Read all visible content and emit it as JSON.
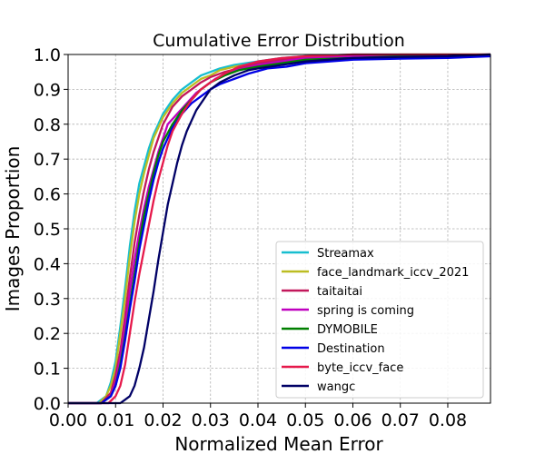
{
  "chart_data": {
    "type": "line",
    "title": "Cumulative Error Distribution",
    "xlabel": "Normalized Mean Error",
    "ylabel": "Images Proportion",
    "xlim": [
      0.0,
      0.089
    ],
    "ylim": [
      0.0,
      1.0
    ],
    "xticks": [
      "0.00",
      "0.01",
      "0.02",
      "0.03",
      "0.04",
      "0.05",
      "0.06",
      "0.07",
      "0.08"
    ],
    "yticks": [
      "0.0",
      "0.1",
      "0.2",
      "0.3",
      "0.4",
      "0.5",
      "0.6",
      "0.7",
      "0.8",
      "0.9",
      "1.0"
    ],
    "grid": true,
    "legend_position": "lower-right",
    "series": [
      {
        "name": "Streamax",
        "color": "#17becf",
        "points": [
          [
            0.0,
            0.0
          ],
          [
            0.006,
            0.0
          ],
          [
            0.008,
            0.02
          ],
          [
            0.009,
            0.06
          ],
          [
            0.01,
            0.12
          ],
          [
            0.011,
            0.22
          ],
          [
            0.012,
            0.33
          ],
          [
            0.013,
            0.45
          ],
          [
            0.014,
            0.55
          ],
          [
            0.015,
            0.63
          ],
          [
            0.016,
            0.68
          ],
          [
            0.017,
            0.73
          ],
          [
            0.018,
            0.77
          ],
          [
            0.019,
            0.8
          ],
          [
            0.02,
            0.83
          ],
          [
            0.022,
            0.87
          ],
          [
            0.024,
            0.9
          ],
          [
            0.026,
            0.92
          ],
          [
            0.028,
            0.94
          ],
          [
            0.03,
            0.95
          ],
          [
            0.032,
            0.96
          ],
          [
            0.035,
            0.97
          ],
          [
            0.04,
            0.98
          ],
          [
            0.045,
            0.99
          ],
          [
            0.05,
            0.995
          ],
          [
            0.06,
            1.0
          ],
          [
            0.089,
            1.0
          ]
        ]
      },
      {
        "name": "face_landmark_iccv_2021",
        "color": "#bcbd22",
        "points": [
          [
            0.0,
            0.0
          ],
          [
            0.0065,
            0.0
          ],
          [
            0.008,
            0.02
          ],
          [
            0.009,
            0.05
          ],
          [
            0.01,
            0.1
          ],
          [
            0.011,
            0.2
          ],
          [
            0.012,
            0.3
          ],
          [
            0.013,
            0.42
          ],
          [
            0.014,
            0.52
          ],
          [
            0.015,
            0.6
          ],
          [
            0.016,
            0.66
          ],
          [
            0.017,
            0.71
          ],
          [
            0.018,
            0.76
          ],
          [
            0.019,
            0.79
          ],
          [
            0.02,
            0.82
          ],
          [
            0.022,
            0.86
          ],
          [
            0.024,
            0.89
          ],
          [
            0.026,
            0.91
          ],
          [
            0.028,
            0.93
          ],
          [
            0.03,
            0.94
          ],
          [
            0.032,
            0.955
          ],
          [
            0.035,
            0.965
          ],
          [
            0.04,
            0.975
          ],
          [
            0.045,
            0.985
          ],
          [
            0.05,
            0.99
          ],
          [
            0.06,
            0.995
          ],
          [
            0.07,
            1.0
          ],
          [
            0.089,
            1.0
          ]
        ]
      },
      {
        "name": "taitaitai",
        "color": "#c2185b",
        "points": [
          [
            0.0,
            0.0
          ],
          [
            0.007,
            0.0
          ],
          [
            0.009,
            0.03
          ],
          [
            0.01,
            0.08
          ],
          [
            0.011,
            0.15
          ],
          [
            0.012,
            0.25
          ],
          [
            0.013,
            0.36
          ],
          [
            0.014,
            0.46
          ],
          [
            0.015,
            0.54
          ],
          [
            0.016,
            0.61
          ],
          [
            0.017,
            0.67
          ],
          [
            0.018,
            0.72
          ],
          [
            0.019,
            0.76
          ],
          [
            0.02,
            0.8
          ],
          [
            0.022,
            0.85
          ],
          [
            0.024,
            0.88
          ],
          [
            0.026,
            0.9
          ],
          [
            0.028,
            0.92
          ],
          [
            0.03,
            0.935
          ],
          [
            0.033,
            0.95
          ],
          [
            0.036,
            0.96
          ],
          [
            0.04,
            0.975
          ],
          [
            0.045,
            0.985
          ],
          [
            0.05,
            0.99
          ],
          [
            0.06,
            0.995
          ],
          [
            0.089,
            1.0
          ]
        ]
      },
      {
        "name": "spring is coming",
        "color": "#bf00bf",
        "points": [
          [
            0.0,
            0.0
          ],
          [
            0.007,
            0.0
          ],
          [
            0.009,
            0.02
          ],
          [
            0.01,
            0.06
          ],
          [
            0.011,
            0.13
          ],
          [
            0.012,
            0.22
          ],
          [
            0.013,
            0.32
          ],
          [
            0.014,
            0.41
          ],
          [
            0.015,
            0.49
          ],
          [
            0.016,
            0.56
          ],
          [
            0.017,
            0.62
          ],
          [
            0.018,
            0.67
          ],
          [
            0.019,
            0.72
          ],
          [
            0.02,
            0.76
          ],
          [
            0.021,
            0.8
          ],
          [
            0.023,
            0.83
          ],
          [
            0.025,
            0.86
          ],
          [
            0.027,
            0.89
          ],
          [
            0.029,
            0.91
          ],
          [
            0.031,
            0.93
          ],
          [
            0.034,
            0.95
          ],
          [
            0.037,
            0.96
          ],
          [
            0.04,
            0.97
          ],
          [
            0.045,
            0.98
          ],
          [
            0.05,
            0.99
          ],
          [
            0.06,
            0.995
          ],
          [
            0.089,
            1.0
          ]
        ]
      },
      {
        "name": "DYMOBILE",
        "color": "#007f00",
        "points": [
          [
            0.0,
            0.0
          ],
          [
            0.007,
            0.0
          ],
          [
            0.009,
            0.02
          ],
          [
            0.01,
            0.05
          ],
          [
            0.011,
            0.11
          ],
          [
            0.012,
            0.19
          ],
          [
            0.013,
            0.28
          ],
          [
            0.014,
            0.37
          ],
          [
            0.015,
            0.46
          ],
          [
            0.016,
            0.54
          ],
          [
            0.017,
            0.6
          ],
          [
            0.018,
            0.66
          ],
          [
            0.019,
            0.71
          ],
          [
            0.02,
            0.75
          ],
          [
            0.022,
            0.8
          ],
          [
            0.024,
            0.84
          ],
          [
            0.026,
            0.87
          ],
          [
            0.028,
            0.9
          ],
          [
            0.03,
            0.92
          ],
          [
            0.033,
            0.94
          ],
          [
            0.036,
            0.955
          ],
          [
            0.04,
            0.965
          ],
          [
            0.045,
            0.975
          ],
          [
            0.05,
            0.985
          ],
          [
            0.06,
            0.99
          ],
          [
            0.07,
            0.995
          ],
          [
            0.089,
            1.0
          ]
        ]
      },
      {
        "name": "Destination",
        "color": "#0000e6",
        "points": [
          [
            0.0,
            0.0
          ],
          [
            0.007,
            0.0
          ],
          [
            0.009,
            0.02
          ],
          [
            0.01,
            0.05
          ],
          [
            0.011,
            0.1
          ],
          [
            0.012,
            0.18
          ],
          [
            0.013,
            0.27
          ],
          [
            0.014,
            0.35
          ],
          [
            0.015,
            0.44
          ],
          [
            0.016,
            0.51
          ],
          [
            0.017,
            0.58
          ],
          [
            0.018,
            0.64
          ],
          [
            0.019,
            0.69
          ],
          [
            0.02,
            0.73
          ],
          [
            0.022,
            0.79
          ],
          [
            0.024,
            0.83
          ],
          [
            0.026,
            0.86
          ],
          [
            0.028,
            0.88
          ],
          [
            0.03,
            0.9
          ],
          [
            0.032,
            0.915
          ],
          [
            0.035,
            0.93
          ],
          [
            0.038,
            0.945
          ],
          [
            0.042,
            0.96
          ],
          [
            0.046,
            0.965
          ],
          [
            0.05,
            0.975
          ],
          [
            0.055,
            0.98
          ],
          [
            0.06,
            0.985
          ],
          [
            0.07,
            0.988
          ],
          [
            0.08,
            0.99
          ],
          [
            0.089,
            0.995
          ]
        ]
      },
      {
        "name": "byte_iccv_face",
        "color": "#e6194b",
        "points": [
          [
            0.0,
            0.0
          ],
          [
            0.0085,
            0.0
          ],
          [
            0.01,
            0.02
          ],
          [
            0.011,
            0.05
          ],
          [
            0.012,
            0.11
          ],
          [
            0.013,
            0.2
          ],
          [
            0.014,
            0.29
          ],
          [
            0.015,
            0.37
          ],
          [
            0.016,
            0.44
          ],
          [
            0.017,
            0.51
          ],
          [
            0.018,
            0.58
          ],
          [
            0.019,
            0.64
          ],
          [
            0.02,
            0.69
          ],
          [
            0.021,
            0.74
          ],
          [
            0.022,
            0.78
          ],
          [
            0.024,
            0.83
          ],
          [
            0.026,
            0.87
          ],
          [
            0.028,
            0.9
          ],
          [
            0.03,
            0.92
          ],
          [
            0.033,
            0.945
          ],
          [
            0.036,
            0.965
          ],
          [
            0.04,
            0.98
          ],
          [
            0.045,
            0.99
          ],
          [
            0.05,
            0.995
          ],
          [
            0.06,
            1.0
          ],
          [
            0.089,
            1.0
          ]
        ]
      },
      {
        "name": "wangc",
        "color": "#000066",
        "points": [
          [
            0.0,
            0.0
          ],
          [
            0.011,
            0.0
          ],
          [
            0.012,
            0.01
          ],
          [
            0.013,
            0.02
          ],
          [
            0.014,
            0.05
          ],
          [
            0.015,
            0.1
          ],
          [
            0.016,
            0.16
          ],
          [
            0.017,
            0.24
          ],
          [
            0.018,
            0.32
          ],
          [
            0.019,
            0.41
          ],
          [
            0.02,
            0.49
          ],
          [
            0.021,
            0.57
          ],
          [
            0.022,
            0.63
          ],
          [
            0.023,
            0.69
          ],
          [
            0.024,
            0.74
          ],
          [
            0.025,
            0.78
          ],
          [
            0.026,
            0.81
          ],
          [
            0.027,
            0.84
          ],
          [
            0.028,
            0.86
          ],
          [
            0.029,
            0.88
          ],
          [
            0.03,
            0.9
          ],
          [
            0.032,
            0.92
          ],
          [
            0.035,
            0.94
          ],
          [
            0.038,
            0.955
          ],
          [
            0.04,
            0.96
          ],
          [
            0.045,
            0.97
          ],
          [
            0.05,
            0.98
          ],
          [
            0.055,
            0.985
          ],
          [
            0.06,
            0.99
          ],
          [
            0.07,
            0.993
          ],
          [
            0.08,
            0.995
          ],
          [
            0.089,
            1.0
          ]
        ]
      }
    ]
  }
}
